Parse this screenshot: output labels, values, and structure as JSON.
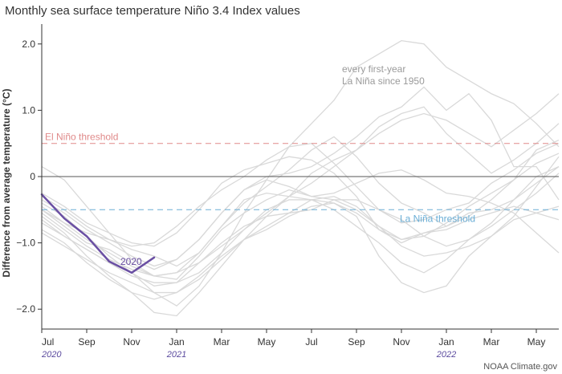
{
  "chart_data": {
    "type": "line",
    "title": "Monthly sea surface temperature Niño 3.4 Index values",
    "ylabel": "Difference from average temperature (°C)",
    "xlabel": "",
    "ylim": [
      -2.3,
      2.3
    ],
    "y_ticks": [
      {
        "value": 2.0,
        "label": "2.0"
      },
      {
        "value": 1.0,
        "label": "1.0"
      },
      {
        "value": 0,
        "label": "0"
      },
      {
        "value": -1.0,
        "label": "−1.0"
      },
      {
        "value": -2.0,
        "label": "−2.0"
      }
    ],
    "x_ticks": [
      {
        "index": 0,
        "label": "Jul"
      },
      {
        "index": 2,
        "label": "Sep"
      },
      {
        "index": 4,
        "label": "Nov"
      },
      {
        "index": 6,
        "label": "Jan"
      },
      {
        "index": 8,
        "label": "Mar"
      },
      {
        "index": 10,
        "label": "May"
      },
      {
        "index": 12,
        "label": "Jul"
      },
      {
        "index": 14,
        "label": "Sep"
      },
      {
        "index": 16,
        "label": "Nov"
      },
      {
        "index": 18,
        "label": "Jan"
      },
      {
        "index": 20,
        "label": "Mar"
      },
      {
        "index": 22,
        "label": "May"
      }
    ],
    "year_labels": [
      {
        "index": 0,
        "label": "2020"
      },
      {
        "index": 6,
        "label": "2021"
      },
      {
        "index": 18,
        "label": "2022"
      }
    ],
    "grid": false,
    "thresholds": [
      {
        "label": "El Niño threshold",
        "value": 0.5,
        "color": "#e08a8a"
      },
      {
        "label": "La Niña threshold",
        "value": -0.5,
        "color": "#6aaed6"
      }
    ],
    "annotation": "every first-year La Niña since 1950",
    "annotation_lines": [
      "every first-year",
      "La Niña since 1950"
    ],
    "highlight": {
      "name": "2020",
      "color": "#6a4fa3",
      "values": [
        -0.27,
        -0.63,
        -0.9,
        -1.28,
        -1.45,
        -1.22
      ]
    },
    "background_series": [
      [
        -0.5,
        -0.75,
        -1.0,
        -1.1,
        -1.3,
        -1.5,
        -1.55,
        -1.2,
        -0.8,
        -0.55,
        -0.35,
        -0.2,
        -0.3,
        -0.35,
        -0.5,
        -0.75,
        -1.05,
        -1.2,
        -1.15,
        -1.05,
        -0.9,
        -0.65,
        -0.55,
        -0.45
      ],
      [
        -0.6,
        -0.85,
        -1.2,
        -1.5,
        -1.75,
        -2.05,
        -2.1,
        -1.75,
        -1.35,
        -0.95,
        -0.6,
        -0.3,
        0.05,
        0.25,
        0.4,
        0.75,
        0.95,
        1.05,
        0.65,
        0.35,
        0.05,
        0.25,
        0.5,
        0.8
      ],
      [
        -0.4,
        -0.6,
        -0.9,
        -1.2,
        -1.45,
        -1.75,
        -1.95,
        -1.65,
        -1.15,
        -0.55,
        -0.05,
        0.45,
        0.8,
        1.15,
        1.65,
        1.85,
        2.05,
        2.0,
        1.65,
        1.45,
        1.25,
        1.1,
        0.8,
        0.45
      ],
      [
        -0.3,
        -0.5,
        -0.75,
        -0.95,
        -1.1,
        -1.2,
        -1.35,
        -1.15,
        -0.75,
        -0.35,
        -0.25,
        -0.3,
        -0.35,
        -0.4,
        -0.55,
        -0.8,
        -0.95,
        -0.85,
        -0.75,
        -0.55,
        -0.5,
        -0.35,
        0.0,
        0.15
      ],
      [
        -0.7,
        -0.9,
        -1.1,
        -1.3,
        -1.5,
        -1.6,
        -1.6,
        -1.3,
        -1.0,
        -0.75,
        -0.6,
        -0.55,
        -0.5,
        -0.35,
        -0.35,
        -0.5,
        -0.65,
        -0.9,
        -1.05,
        -0.95,
        -0.7,
        -0.35,
        -0.1,
        0.15
      ],
      [
        -0.8,
        -1.0,
        -1.3,
        -1.55,
        -1.75,
        -1.85,
        -1.75,
        -1.55,
        -1.25,
        -0.95,
        -0.8,
        -0.6,
        -0.45,
        -0.4,
        -0.6,
        -1.2,
        -1.6,
        -1.75,
        -1.65,
        -1.2,
        -0.9,
        -0.6,
        -0.15,
        0.3
      ],
      [
        -0.55,
        -0.8,
        -1.05,
        -1.25,
        -1.4,
        -1.5,
        -1.45,
        -1.3,
        -1.05,
        -0.8,
        -0.55,
        -0.3,
        -0.1,
        0.15,
        0.4,
        0.65,
        0.85,
        0.95,
        0.85,
        0.65,
        0.45,
        0.7,
        0.95,
        1.25
      ],
      [
        -0.45,
        -0.7,
        -0.95,
        -1.15,
        -1.35,
        -1.5,
        -1.45,
        -1.15,
        -0.75,
        -0.4,
        -0.15,
        0.1,
        0.4,
        0.6,
        0.3,
        -0.1,
        -0.4,
        -0.55,
        -0.75,
        -0.6,
        -0.35,
        -0.05,
        0.4,
        0.55
      ],
      [
        -0.35,
        -0.55,
        -0.8,
        -1.0,
        -1.2,
        -1.35,
        -1.25,
        -0.95,
        -0.55,
        -0.2,
        -0.05,
        -0.15,
        -0.3,
        -0.25,
        -0.1,
        0.05,
        0.1,
        -0.05,
        -0.25,
        -0.3,
        -0.4,
        -0.55,
        -0.85,
        -1.15
      ],
      [
        0.15,
        -0.05,
        -0.45,
        -0.85,
        -1.25,
        -1.4,
        -1.25,
        -0.95,
        -0.55,
        -0.2,
        0.0,
        0.05,
        0.15,
        0.35,
        0.6,
        0.9,
        1.05,
        1.35,
        1.0,
        1.25,
        0.85,
        0.15,
        0.15,
        -0.35
      ],
      [
        -0.25,
        -0.45,
        -0.7,
        -0.85,
        -1.0,
        -1.05,
        -0.85,
        -0.5,
        -0.1,
        0.1,
        0.2,
        0.3,
        0.25,
        0.05,
        -0.3,
        -0.8,
        -1.0,
        -0.85,
        -0.8,
        -0.65,
        -0.55,
        -0.45,
        -0.55,
        -0.65
      ],
      [
        -0.65,
        -0.9,
        -1.1,
        -1.3,
        -1.45,
        -1.65,
        -1.6,
        -1.45,
        -1.15,
        -0.8,
        -0.5,
        -0.35,
        -0.35,
        -0.5,
        -0.75,
        -1.0,
        -1.3,
        -1.45,
        -1.25,
        -0.95,
        -0.75,
        -0.5,
        -0.25,
        0.05
      ],
      [
        -0.5,
        -0.7,
        -0.85,
        -0.95,
        -1.05,
        -1.0,
        -0.75,
        -0.45,
        -0.2,
        0.0,
        0.25,
        0.45,
        0.5,
        0.2,
        -0.15,
        -0.5,
        -0.7,
        -0.65,
        -0.5,
        -0.4,
        -0.1,
        0.1,
        0.35,
        0.5
      ],
      [
        -0.85,
        -1.05,
        -1.25,
        -1.45,
        -1.6,
        -1.75,
        -1.75,
        -1.5,
        -1.2,
        -0.95,
        -0.75,
        -0.55,
        -0.35,
        -0.3,
        -0.45,
        -0.75,
        -0.95,
        -0.9,
        -0.7,
        -0.45,
        -0.25,
        -0.05,
        0.2,
        0.35
      ]
    ]
  },
  "credit": "NOAA Climate.gov"
}
